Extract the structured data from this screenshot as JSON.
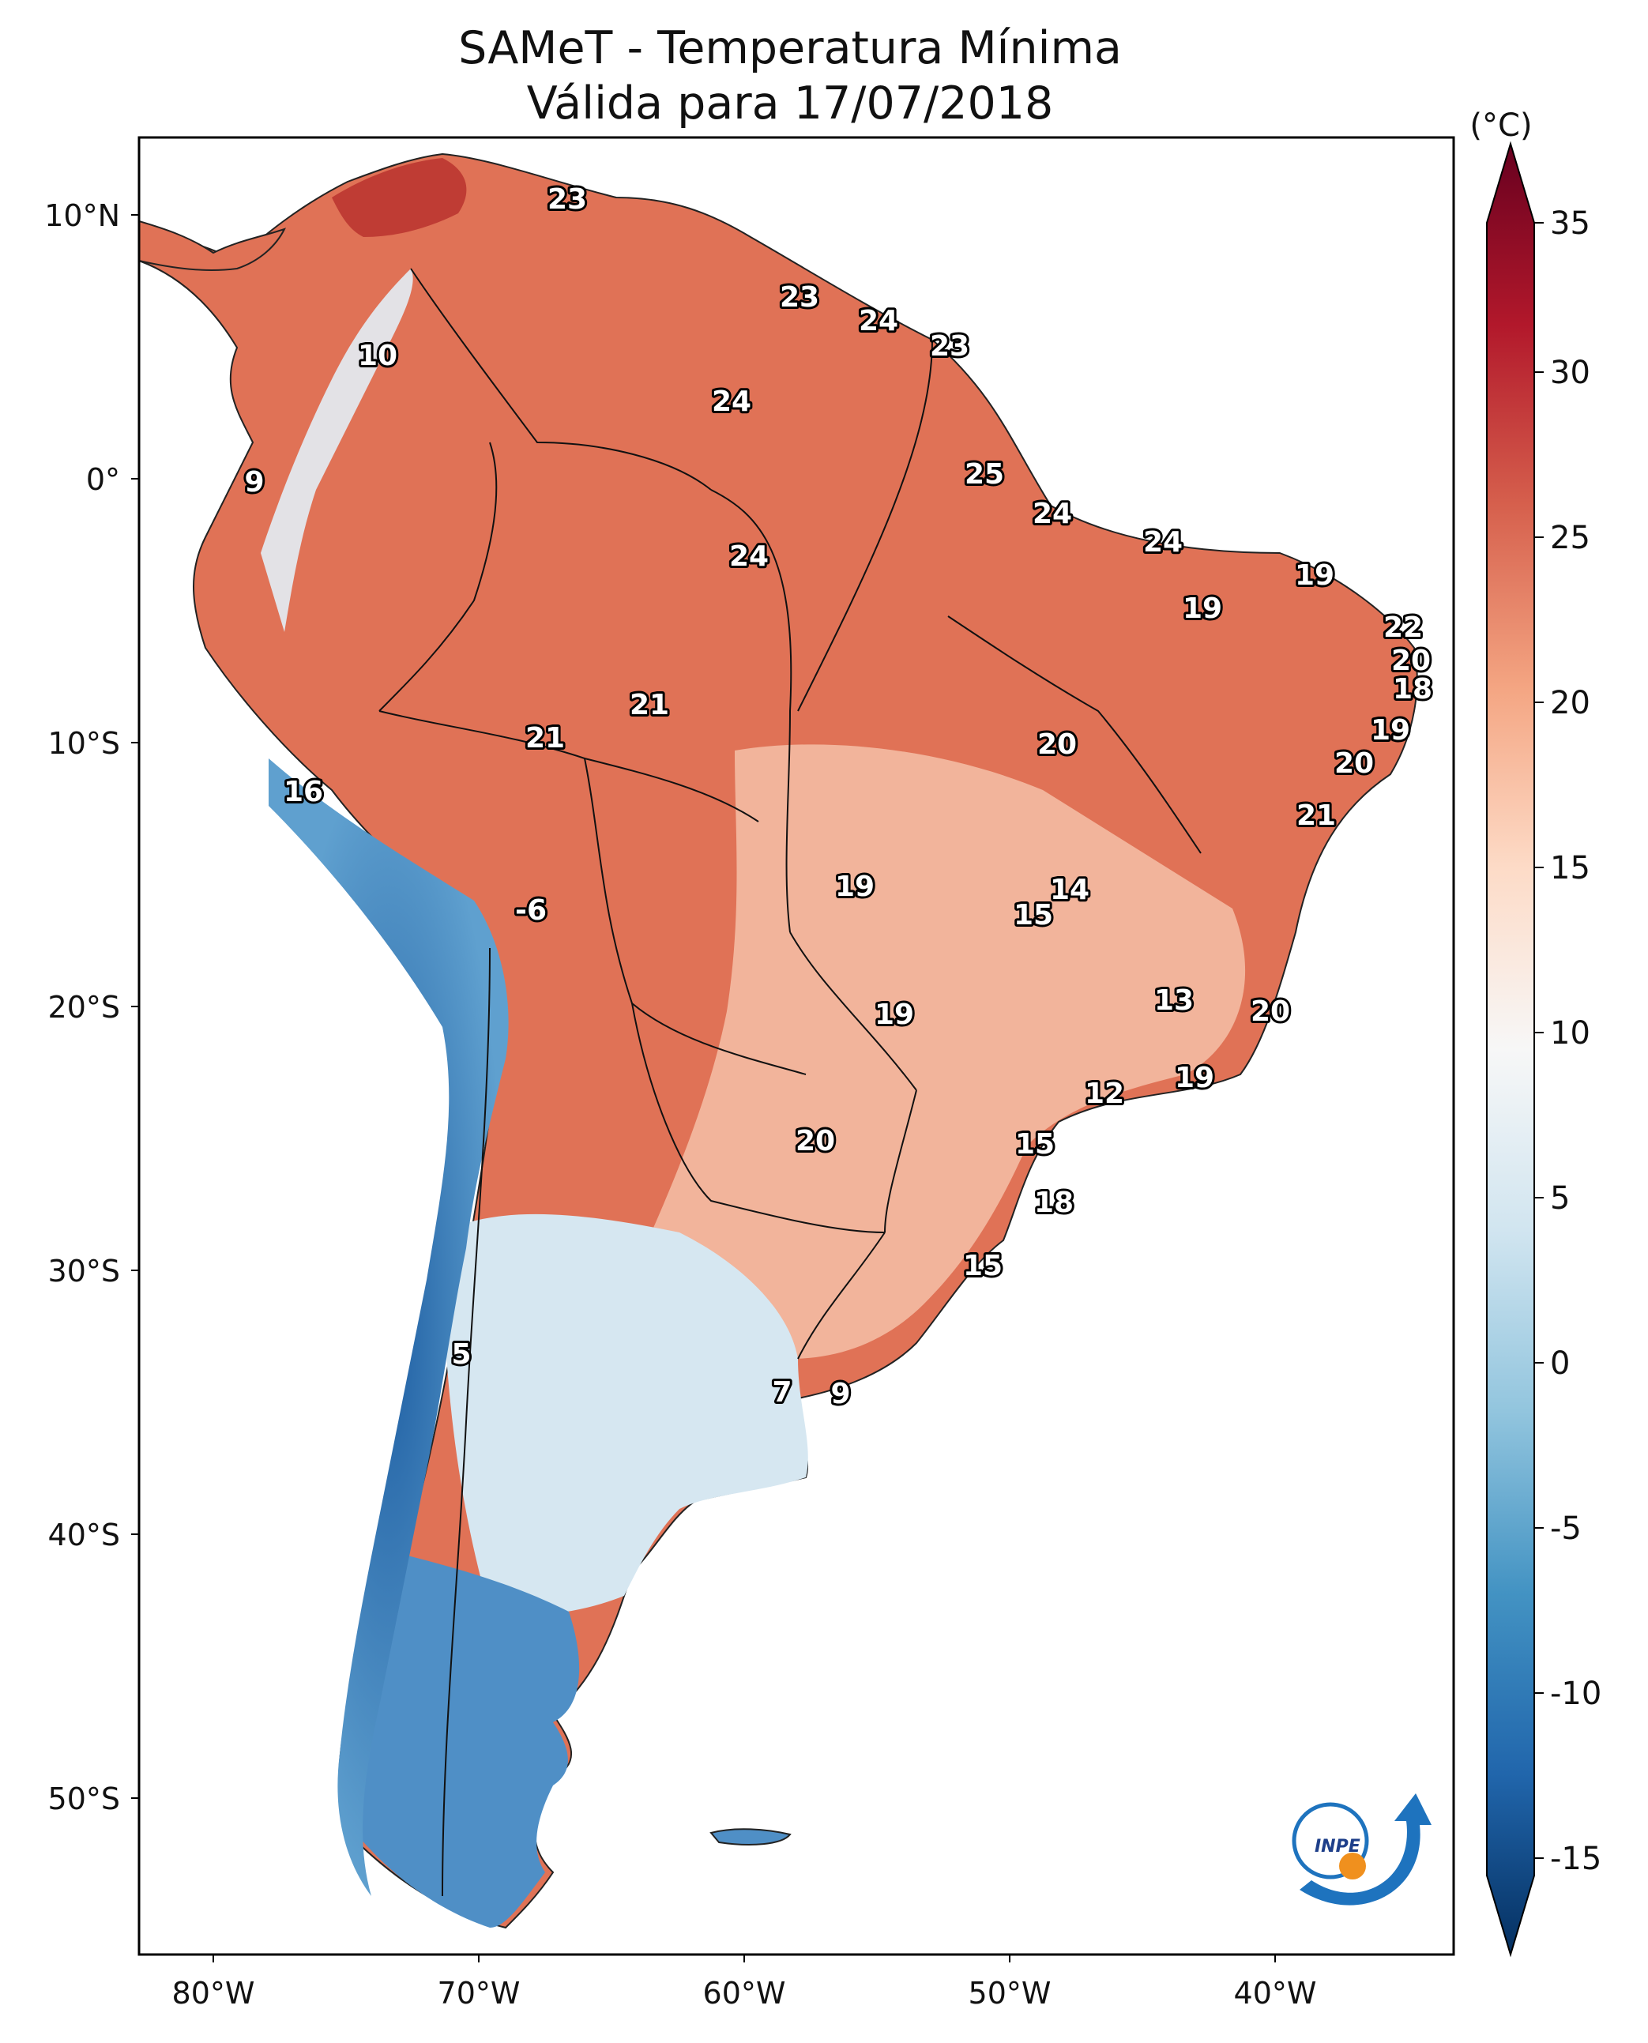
{
  "title_line1": "SAMeT - Temperatura Mínima",
  "title_line2": "Válida para 17/07/2018",
  "axes": {
    "lon_ticks": [
      "80°W",
      "70°W",
      "60°W",
      "50°W",
      "40°W"
    ],
    "lat_ticks": [
      "10°N",
      "0°",
      "10°S",
      "20°S",
      "30°S",
      "40°S",
      "50°S"
    ]
  },
  "colorbar": {
    "unit": "(°C)",
    "ticks": [
      "35",
      "30",
      "25",
      "20",
      "15",
      "10",
      "5",
      "0",
      "-5",
      "-10",
      "-15"
    ]
  },
  "station_labels": [
    "23",
    "10",
    "23",
    "24",
    "23",
    "24",
    "9",
    "25",
    "24",
    "24",
    "24",
    "19",
    "19",
    "22",
    "20",
    "18",
    "21",
    "21",
    "19",
    "20",
    "16",
    "20",
    "21",
    "14",
    "15",
    "-6",
    "19",
    "13",
    "20",
    "19",
    "12",
    "19",
    "20",
    "15",
    "18",
    "15",
    "5",
    "7",
    "9"
  ],
  "logo_text": "INPE",
  "colors": {
    "hot": "#67001f",
    "warm": "#e0674f",
    "mild": "#f6cdb5",
    "neutral": "#f7f7f7",
    "cool": "#c6dcec",
    "cold": "#2f74b5",
    "cold_deep": "#053061"
  }
}
